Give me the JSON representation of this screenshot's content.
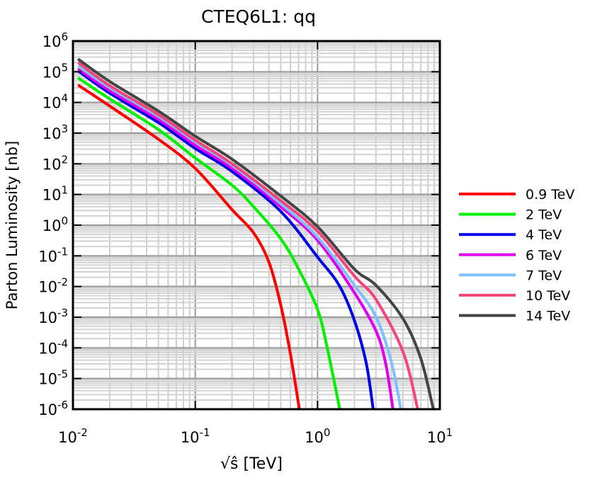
{
  "chart_data": {
    "type": "line",
    "title": "CTEQ6L1: qq",
    "xlabel": "√ŝ [TeV]",
    "ylabel": "Parton Luminosity [nb]",
    "xscale": "log",
    "yscale": "log",
    "xlim": [
      0.01,
      10
    ],
    "ylim": [
      1e-06,
      1000000.0
    ],
    "grid": true,
    "legend_position": "right-outside",
    "x_ticks": [
      {
        "base": "10",
        "exp": "-2"
      },
      {
        "base": "10",
        "exp": "-1"
      },
      {
        "base": "10",
        "exp": "0"
      },
      {
        "base": "10",
        "exp": "1"
      }
    ],
    "y_ticks": [
      {
        "base": "10",
        "exp": "6"
      },
      {
        "base": "10",
        "exp": "5"
      },
      {
        "base": "10",
        "exp": "4"
      },
      {
        "base": "10",
        "exp": "3"
      },
      {
        "base": "10",
        "exp": "2"
      },
      {
        "base": "10",
        "exp": "1"
      },
      {
        "base": "10",
        "exp": "0"
      },
      {
        "base": "10",
        "exp": "-1"
      },
      {
        "base": "10",
        "exp": "-2"
      },
      {
        "base": "10",
        "exp": "-3"
      },
      {
        "base": "10",
        "exp": "-4"
      },
      {
        "base": "10",
        "exp": "-5"
      },
      {
        "base": "10",
        "exp": "-6"
      }
    ],
    "series": [
      {
        "name": "0.9 TeV",
        "color": "#ff0000",
        "x": [
          0.011,
          0.02,
          0.05,
          0.1,
          0.2,
          0.3,
          0.4,
          0.5,
          0.6,
          0.71
        ],
        "y": [
          37000.0,
          7600.0,
          630,
          71,
          3.2,
          0.56,
          0.063,
          0.0025,
          6.3e-05,
          1e-06
        ]
      },
      {
        "name": "2 TeV",
        "color": "#00f000",
        "x": [
          0.011,
          0.02,
          0.05,
          0.1,
          0.2,
          0.3,
          0.5,
          0.7,
          1.0,
          1.2,
          1.52
        ],
        "y": [
          63000.0,
          13000.0,
          1300.0,
          155,
          20,
          4,
          0.36,
          0.037,
          0.0018,
          0.0001,
          1e-06
        ]
      },
      {
        "name": "4 TeV",
        "color": "#0000e8",
        "x": [
          0.011,
          0.02,
          0.05,
          0.1,
          0.2,
          0.5,
          1.0,
          1.5,
          2.0,
          2.5,
          2.85
        ],
        "y": [
          107000.0,
          20000.0,
          2200.0,
          316,
          56,
          2.8,
          0.091,
          0.011,
          0.00079,
          3.2e-05,
          1e-06
        ]
      },
      {
        "name": "6 TeV",
        "color": "#e000f0",
        "x": [
          0.011,
          0.02,
          0.05,
          0.1,
          0.2,
          0.5,
          1,
          2,
          3,
          3.6,
          4.14
        ],
        "y": [
          126000.0,
          24000.0,
          2800.0,
          400,
          71,
          4,
          0.32,
          0.0063,
          0.00036,
          3.2e-05,
          1e-06
        ]
      },
      {
        "name": "7 TeV",
        "color": "#80c0ff",
        "x": [
          0.011,
          0.02,
          0.05,
          0.1,
          0.2,
          0.5,
          1,
          2,
          3,
          4,
          4.8
        ],
        "y": [
          155000.0,
          30000.0,
          3500.0,
          525,
          89,
          5,
          0.41,
          0.011,
          0.00105,
          3.7e-05,
          1e-06
        ]
      },
      {
        "name": "10 TeV",
        "color": "#f4457a",
        "x": [
          0.011,
          0.02,
          0.05,
          0.1,
          0.2,
          0.5,
          1,
          2,
          3,
          5,
          6.6
        ],
        "y": [
          200000.0,
          35000.0,
          4000.0,
          590,
          100,
          6.3,
          0.63,
          0.022,
          0.0038,
          7.4e-05,
          1e-06
        ]
      },
      {
        "name": "14 TeV",
        "color": "#444444",
        "x": [
          0.011,
          0.02,
          0.05,
          0.1,
          0.2,
          0.5,
          1,
          2,
          3,
          5,
          7,
          8.85
        ],
        "y": [
          260000.0,
          48000.0,
          5200.0,
          794,
          141,
          8.9,
          0.89,
          0.037,
          0.011,
          0.00089,
          4.4e-05,
          1e-06
        ]
      }
    ]
  }
}
